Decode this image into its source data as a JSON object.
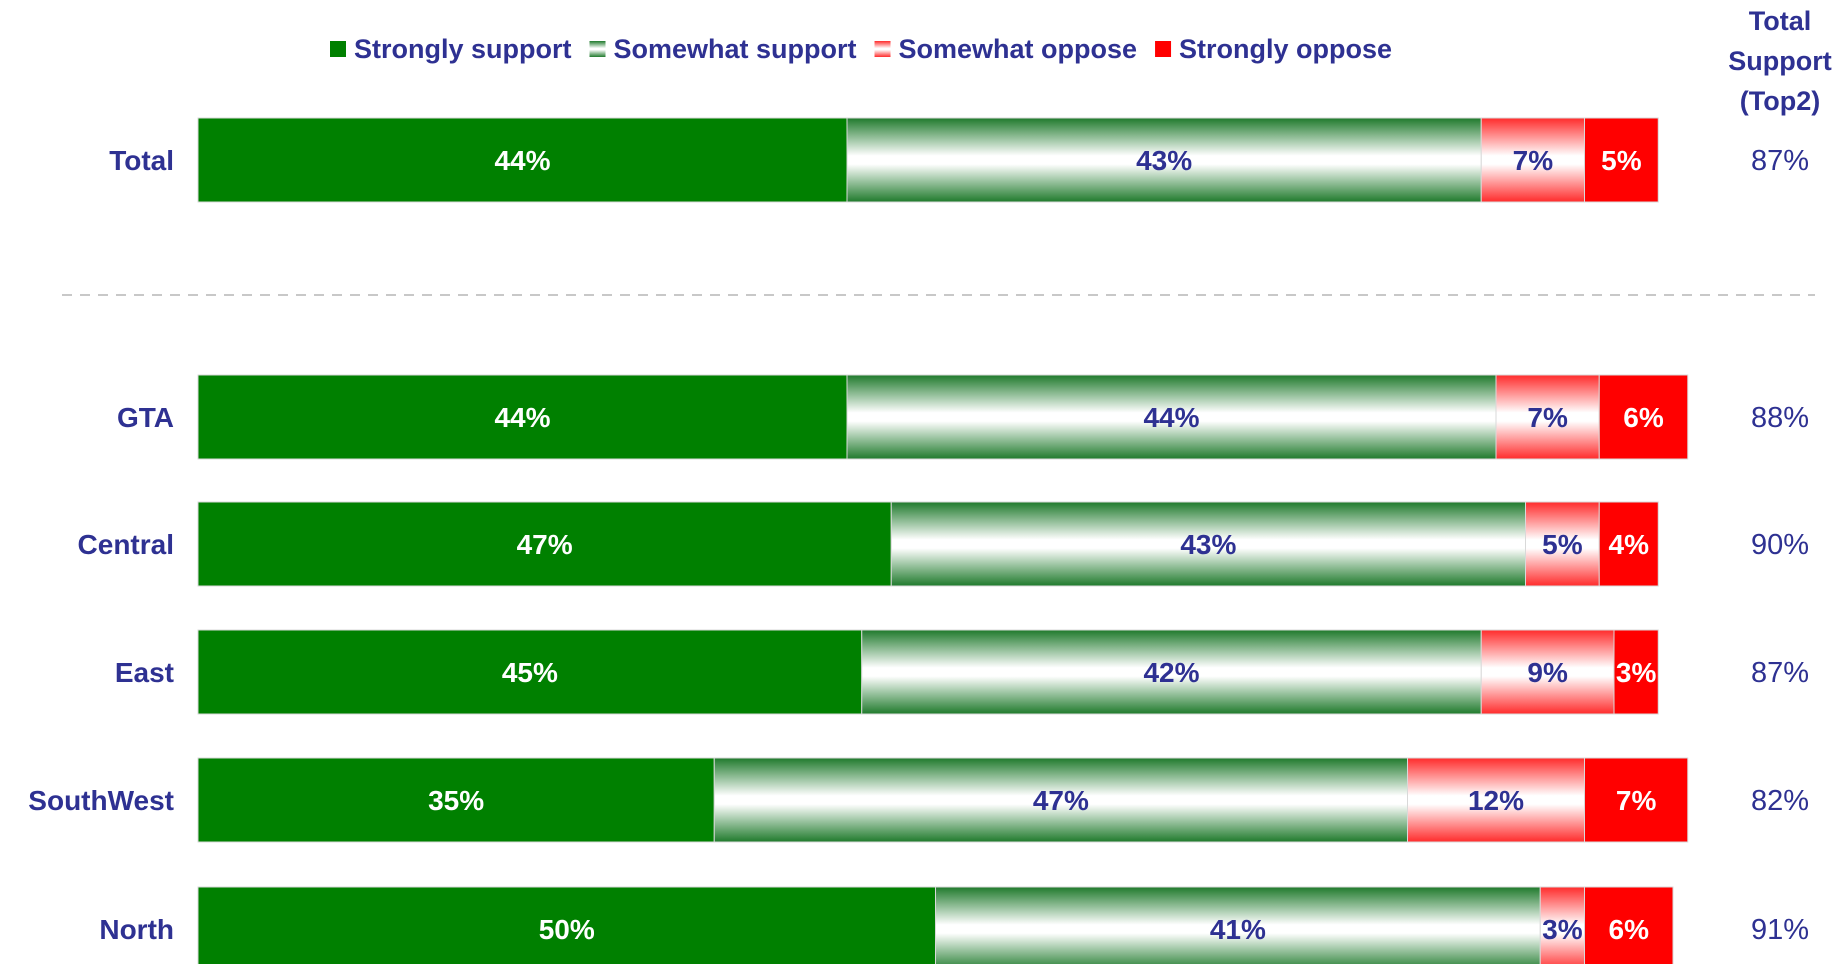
{
  "chart_data": {
    "type": "bar",
    "orientation": "horizontal",
    "stacked": true,
    "legend_position": "top",
    "total_header": [
      "Total",
      "Support",
      "(Top2)"
    ],
    "series": [
      {
        "name": "Strongly support",
        "color": "#008000",
        "label_color": "#ffffff",
        "pattern": "solid"
      },
      {
        "name": "Somewhat support",
        "color": "#2e8b3a",
        "label_color": "#2e3192",
        "pattern": "gradient"
      },
      {
        "name": "Somewhat oppose",
        "color": "#ff2020",
        "label_color": "#2e3192",
        "pattern": "gradient"
      },
      {
        "name": "Strongly oppose",
        "color": "#ff0000",
        "label_color": "#ffffff",
        "pattern": "solid"
      }
    ],
    "rows": [
      {
        "category": "Total",
        "values": [
          44,
          43,
          7,
          5
        ],
        "labels": [
          "44%",
          "43%",
          "7%",
          "5%"
        ],
        "total": "87%"
      },
      {
        "category": "GTA",
        "values": [
          44,
          44,
          7,
          6
        ],
        "labels": [
          "44%",
          "44%",
          "7%",
          "6%"
        ],
        "total": "88%"
      },
      {
        "category": "Central",
        "values": [
          47,
          43,
          5,
          4
        ],
        "labels": [
          "47%",
          "43%",
          "5%",
          "4%"
        ],
        "total": "90%"
      },
      {
        "category": "East",
        "values": [
          45,
          42,
          9,
          3
        ],
        "labels": [
          "45%",
          "42%",
          "9%",
          "3%"
        ],
        "total": "87%"
      },
      {
        "category": "SouthWest",
        "values": [
          35,
          47,
          12,
          7
        ],
        "labels": [
          "35%",
          "47%",
          "12%",
          "7%"
        ],
        "total": "82%"
      },
      {
        "category": "North",
        "values": [
          50,
          41,
          3,
          6
        ],
        "labels": [
          "50%",
          "41%",
          "3%",
          "6%"
        ],
        "total": "91%"
      }
    ],
    "separator_after_row": 0,
    "label_color": "#2e3192"
  }
}
